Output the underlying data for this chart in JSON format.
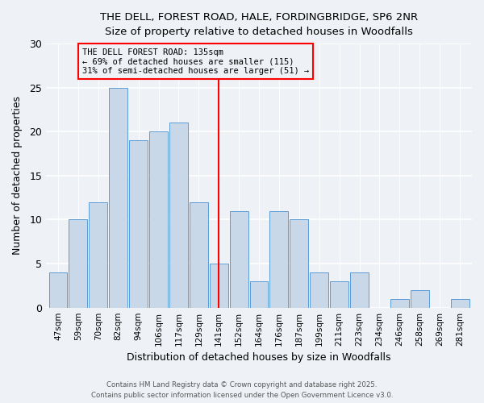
{
  "title_line1": "THE DELL, FOREST ROAD, HALE, FORDINGBRIDGE, SP6 2NR",
  "title_line2": "Size of property relative to detached houses in Woodfalls",
  "xlabel": "Distribution of detached houses by size in Woodfalls",
  "ylabel": "Number of detached properties",
  "bar_labels": [
    "47sqm",
    "59sqm",
    "70sqm",
    "82sqm",
    "94sqm",
    "106sqm",
    "117sqm",
    "129sqm",
    "141sqm",
    "152sqm",
    "164sqm",
    "176sqm",
    "187sqm",
    "199sqm",
    "211sqm",
    "223sqm",
    "234sqm",
    "246sqm",
    "258sqm",
    "269sqm",
    "281sqm"
  ],
  "bar_values": [
    4,
    10,
    12,
    25,
    19,
    20,
    21,
    12,
    5,
    11,
    3,
    11,
    10,
    4,
    3,
    4,
    0,
    1,
    2,
    0,
    1
  ],
  "bar_color": "#c8d8e8",
  "bar_edge_color": "#5b9bd5",
  "vline_color": "red",
  "annotation_text": "THE DELL FOREST ROAD: 135sqm\n← 69% of detached houses are smaller (115)\n31% of semi-detached houses are larger (51) →",
  "annotation_box_edge": "red",
  "ylim": [
    0,
    30
  ],
  "yticks": [
    0,
    5,
    10,
    15,
    20,
    25,
    30
  ],
  "footer_line1": "Contains HM Land Registry data © Crown copyright and database right 2025.",
  "footer_line2": "Contains public sector information licensed under the Open Government Licence v3.0.",
  "background_color": "#eef2f7",
  "grid_color": "white"
}
